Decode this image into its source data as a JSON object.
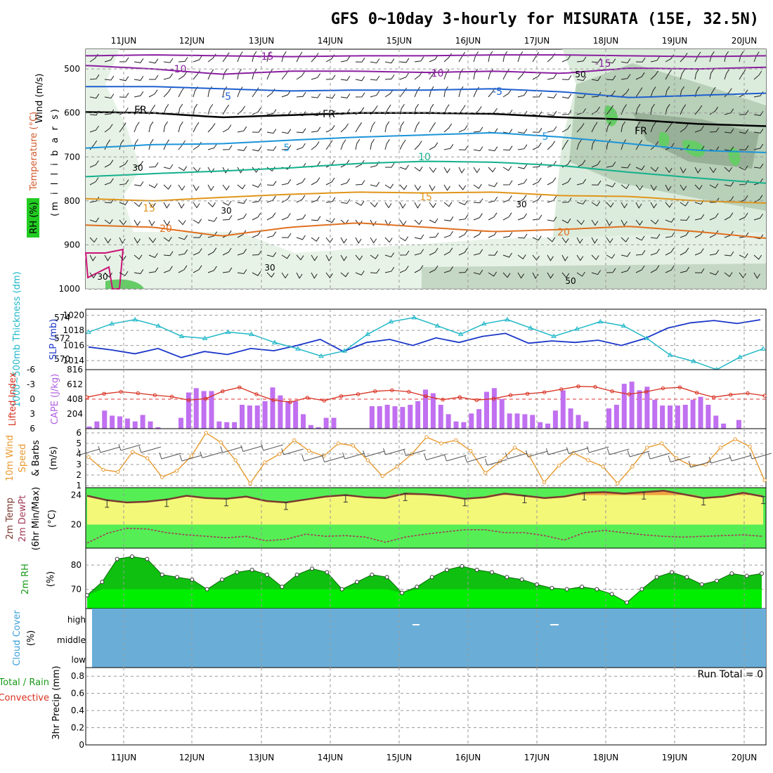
{
  "title": "GFS 0~10day 3-hourly for MISURATA (15E, 32.5N)",
  "dates": [
    "11JUN",
    "12JUN",
    "13JUN",
    "14JUN",
    "15JUN",
    "16JUN",
    "17JUN",
    "18JUN",
    "19JUN",
    "20JUN"
  ],
  "run_total_label": "Run Total = 0",
  "chart_data": [
    {
      "type": "contour",
      "name": "upper-air",
      "labels": {
        "wind": "Wind (m/s)",
        "temperature": "Temperature (°C)",
        "rh": "RH (%)",
        "pressure": "(m i l l i b a r s)"
      },
      "y_ticks": [
        500,
        600,
        700,
        800,
        900,
        1000
      ],
      "isotherms": [
        {
          "label": "-15",
          "color": "#8a1fa0",
          "values": [
            470,
            468,
            470,
            472,
            470,
            470,
            468,
            468,
            470,
            472,
            470
          ]
        },
        {
          "label": "-10",
          "color": "#8a1fa0",
          "values": [
            492,
            500,
            512,
            505,
            505,
            508,
            505,
            510,
            498,
            500,
            496
          ]
        },
        {
          "label": "-5",
          "color": "#1e5fcf",
          "values": [
            540,
            540,
            545,
            550,
            548,
            548,
            545,
            552,
            565,
            560,
            555
          ]
        },
        {
          "label": "FR",
          "color": "#000000",
          "values": [
            598,
            600,
            610,
            605,
            600,
            600,
            602,
            610,
            615,
            625,
            630
          ]
        },
        {
          "label": "5",
          "color": "#1b94d9",
          "values": [
            680,
            672,
            670,
            662,
            655,
            650,
            645,
            655,
            670,
            685,
            690
          ]
        },
        {
          "label": "10",
          "color": "#13b08c",
          "values": [
            745,
            738,
            732,
            725,
            715,
            710,
            712,
            720,
            735,
            748,
            760
          ]
        },
        {
          "label": "15",
          "color": "#e0951a",
          "values": [
            795,
            800,
            792,
            785,
            780,
            782,
            780,
            788,
            790,
            800,
            805
          ]
        },
        {
          "label": "20",
          "color": "#e07020",
          "values": [
            855,
            860,
            880,
            860,
            850,
            860,
            870,
            865,
            858,
            870,
            885
          ]
        }
      ],
      "isotherm_labels_shown": [
        "-15",
        "-10",
        "-10",
        "-15",
        "-5",
        "-5",
        "FR",
        "FR",
        "FR",
        "5",
        "5",
        "10",
        "15",
        "15",
        "20",
        "20"
      ],
      "rh_contour_labels": [
        "30",
        "30",
        "30",
        "30",
        "30",
        "50",
        "50"
      ]
    },
    {
      "type": "line",
      "name": "thickness-slp",
      "labels": {
        "left": "1000~500mb Thickness (dm)",
        "right": "SLP (mb)"
      },
      "left_ticks": [
        570,
        572,
        574
      ],
      "right_ticks": [
        1014,
        1016,
        1018,
        1020
      ],
      "series": [
        {
          "name": "1000~500mb Thickness (dm)",
          "color": "#20b8c8",
          "marker": "triangle",
          "values": [
            572.6,
            573.4,
            573.8,
            573.2,
            572.2,
            572.0,
            572.6,
            572.4,
            571.6,
            571.0,
            570.3,
            570.8,
            572.4,
            573.6,
            574.0,
            573.2,
            572.4,
            573.4,
            573.8,
            573.0,
            572.2,
            572.9,
            573.6,
            573.2,
            572.0,
            570.4,
            569.8,
            569.0,
            570.2,
            571.0
          ]
        },
        {
          "name": "SLP (mb)",
          "color": "#1a36c8",
          "marker": "none",
          "values": [
            1015.8,
            1015.4,
            1014.9,
            1015.6,
            1014.4,
            1015.2,
            1014.8,
            1015.6,
            1015.3,
            1016.0,
            1016.8,
            1015.2,
            1016.4,
            1016.8,
            1016.0,
            1017.0,
            1016.4,
            1017.2,
            1017.6,
            1016.3,
            1016.6,
            1016.4,
            1016.7,
            1016.0,
            1016.9,
            1018.3,
            1019.0,
            1019.3,
            1018.9,
            1019.4
          ]
        }
      ]
    },
    {
      "type": "bar+line",
      "name": "cape-lifted-index",
      "labels": {
        "left": "Lifted Index",
        "right": "CAPE (J/kg)"
      },
      "left_ticks": [
        "-6",
        "-3",
        "0",
        "3",
        "6"
      ],
      "right_ticks": [
        204,
        408,
        612,
        816
      ],
      "series": [
        {
          "name": "CAPE (J/kg)",
          "color": "#c070f0",
          "type": "bar",
          "values": [
            30,
            100,
            250,
            180,
            170,
            140,
            100,
            190,
            100,
            20,
            0,
            5,
            150,
            500,
            560,
            520,
            520,
            100,
            90,
            90,
            330,
            320,
            320,
            380,
            570,
            460,
            380,
            380,
            200,
            50,
            20,
            150,
            150,
            0,
            0,
            0,
            0,
            310,
            310,
            330,
            310,
            300,
            330,
            380,
            540,
            490,
            330,
            200,
            100,
            90,
            210,
            270,
            510,
            560,
            410,
            210,
            210,
            200,
            190,
            90,
            70,
            250,
            530,
            280,
            190,
            100,
            0,
            0,
            280,
            330,
            620,
            650,
            530,
            580,
            400,
            320,
            320,
            320,
            330,
            400,
            440,
            330,
            180,
            70,
            0,
            120,
            0,
            0,
            0
          ]
        },
        {
          "name": "Lifted Index",
          "color": "#d83020",
          "type": "line",
          "values": [
            -0.4,
            -1.1,
            -1.5,
            -1.2,
            -0.8,
            -0.5,
            0.2,
            -0.1,
            -1.6,
            -2.4,
            -1.0,
            0.2,
            0.6,
            -0.3,
            0.3,
            -0.6,
            -1.0,
            -1.6,
            -1.8,
            -1.5,
            -0.6,
            0.1,
            -0.4,
            0.2,
            -0.1,
            -0.8,
            -1.1,
            -1.4,
            -2.0,
            -2.6,
            -2.5,
            -1.6,
            -1.0,
            -1.5,
            -2.2,
            -2.4,
            -1.3,
            -0.4,
            -0.9,
            -1.2,
            -0.7
          ]
        }
      ]
    },
    {
      "type": "line",
      "name": "10m-wind",
      "labels": {
        "wind": "10m Wind",
        "speed": "Speed",
        "barbs": "& Barbs",
        "unit": "(m/s)"
      },
      "y_ticks": [
        1,
        2,
        3,
        4,
        5,
        6
      ],
      "series": [
        {
          "name": "Speed",
          "color": "#e89a30",
          "values": [
            3.7,
            2.5,
            2.3,
            4.2,
            3.6,
            1.8,
            2.4,
            3.8,
            6.0,
            5.1,
            3.4,
            1.2,
            3.2,
            4.0,
            5.3,
            4.3,
            3.8,
            5.0,
            4.8,
            3.4,
            1.9,
            2.8,
            4.0,
            5.6,
            5.0,
            5.3,
            4.3,
            2.2,
            3.3,
            4.6,
            3.8,
            1.3,
            2.9,
            4.1,
            3.4,
            2.8,
            1.2,
            2.8,
            4.6,
            5.0,
            3.6,
            2.9,
            3.0,
            4.6,
            5.4,
            4.7,
            1.5
          ]
        },
        {
          "name": "Barbs",
          "color": "#555555",
          "values": [
            4.2,
            4.4,
            4.6,
            4.4,
            3.8,
            3.6,
            3.9,
            4.4,
            4.5,
            4.6,
            4.2,
            3.6,
            3.5,
            3.8,
            4.0,
            4.2,
            4.1,
            3.7,
            3.6,
            3.5,
            3.2,
            3.8,
            4.0,
            4.2,
            4.3,
            4.4,
            4.2,
            4.0,
            3.8,
            3.5,
            3.0,
            3.4,
            3.6,
            3.8
          ]
        }
      ]
    },
    {
      "type": "area",
      "name": "2m-temp",
      "labels": {
        "temp": "2m Temp",
        "dewpt": "2m DewPt",
        "minmax": "(6hr Min/Max)",
        "unit": "(°C)"
      },
      "y_ticks": [
        20,
        24
      ],
      "series": [
        {
          "name": "2m Temp",
          "color": "#7a3a30",
          "values": [
            23.9,
            23.3,
            23.0,
            23.1,
            23.4,
            23.9,
            23.6,
            23.5,
            23.8,
            23.2,
            23.0,
            23.4,
            23.8,
            24.0,
            23.7,
            23.6,
            24.2,
            24.1,
            23.9,
            23.5,
            23.7,
            24.2,
            23.9,
            23.6,
            23.8,
            24.3,
            24.4,
            24.2,
            24.4,
            24.6,
            24.1,
            23.6,
            23.8,
            24.3,
            23.8
          ]
        },
        {
          "name": "2m DewPt",
          "color": "#a33c5a",
          "values": [
            17.5,
            18.8,
            19.5,
            19.4,
            18.9,
            18.6,
            18.4,
            18.2,
            18.4,
            17.8,
            18.0,
            18.7,
            18.4,
            18.5,
            18.3,
            17.6,
            18.3,
            18.7,
            19.0,
            19.3,
            19.3,
            18.9,
            18.9,
            18.5,
            17.9,
            18.9,
            19.2,
            18.9,
            18.6,
            18.4,
            18.3,
            18.4,
            18.5,
            18.6,
            18.4
          ]
        }
      ]
    },
    {
      "type": "area",
      "name": "2m-rh",
      "labels": {
        "title": "2m RH",
        "unit": "(%)"
      },
      "y_ticks": [
        70,
        80
      ],
      "series": [
        {
          "name": "2m RH",
          "color": "#00cc00",
          "values": [
            67.5,
            73,
            82.5,
            83.5,
            82.5,
            76,
            75,
            74,
            70,
            74,
            77,
            78,
            76,
            71,
            76,
            78.5,
            77,
            70,
            73,
            76,
            75,
            68.5,
            71,
            75,
            78,
            79.5,
            78,
            77,
            75,
            74,
            72,
            70.5,
            70,
            71,
            70,
            68,
            64.5,
            70,
            75,
            77,
            75,
            72,
            73.5,
            76.5,
            75.5,
            76.5
          ]
        }
      ]
    },
    {
      "type": "area",
      "name": "cloud-cover",
      "labels": {
        "title": "Cloud Cover",
        "unit": "(%)"
      },
      "y_tick_labels": [
        "high",
        "middle",
        "low"
      ],
      "cover_percent": 100
    },
    {
      "type": "bar",
      "name": "3hr-precip",
      "labels": {
        "title": "3hr Precip (mm)",
        "total": "Total / Rain",
        "convective": "Convective"
      },
      "y_ticks": [
        0,
        0.2,
        0.4,
        0.6,
        0.8
      ],
      "values": [
        0,
        0,
        0,
        0,
        0,
        0,
        0,
        0,
        0,
        0
      ]
    }
  ]
}
